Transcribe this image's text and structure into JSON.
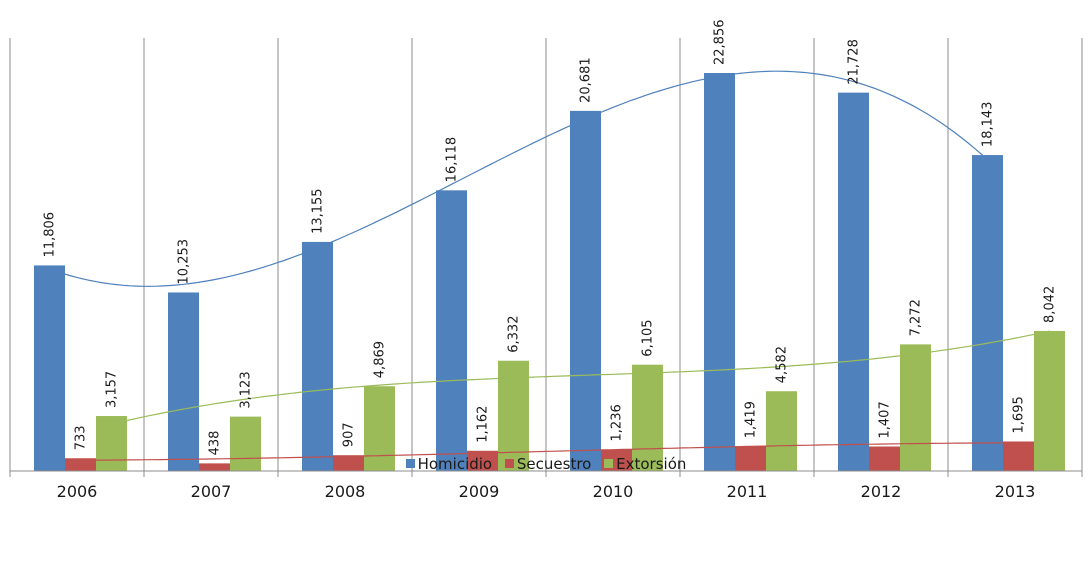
{
  "chart_data": {
    "type": "bar",
    "title": "",
    "xlabel": "",
    "ylabel": "",
    "categories": [
      "2006",
      "2007",
      "2008",
      "2009",
      "2010",
      "2011",
      "2012",
      "2013"
    ],
    "series": [
      {
        "name": "Homicidio",
        "color": "#4f81bd",
        "values": [
          11806,
          10253,
          13155,
          16118,
          20681,
          22856,
          21728,
          18143
        ],
        "labels": [
          "11,806",
          "10,253",
          "13,155",
          "16,118",
          "20,681",
          "22,856",
          "21,728",
          "18,143"
        ]
      },
      {
        "name": "Secuestro",
        "color": "#c0504d",
        "values": [
          733,
          438,
          907,
          1162,
          1236,
          1419,
          1407,
          1695
        ],
        "labels": [
          "733",
          "438",
          "907",
          "1,162",
          "1,236",
          "1,419",
          "1,407",
          "1,695"
        ]
      },
      {
        "name": "Extorsión",
        "color": "#9bbb59",
        "values": [
          3157,
          3123,
          4869,
          6332,
          6105,
          4582,
          7272,
          8042
        ],
        "labels": [
          "3,157",
          "3,123",
          "4,869",
          "6,332",
          "6,105",
          "4,582",
          "7,272",
          "8,042"
        ]
      }
    ],
    "trendlines": true,
    "ylim": [
      0,
      26000
    ],
    "grid": "vertical category separators",
    "legend_position": "bottom"
  }
}
